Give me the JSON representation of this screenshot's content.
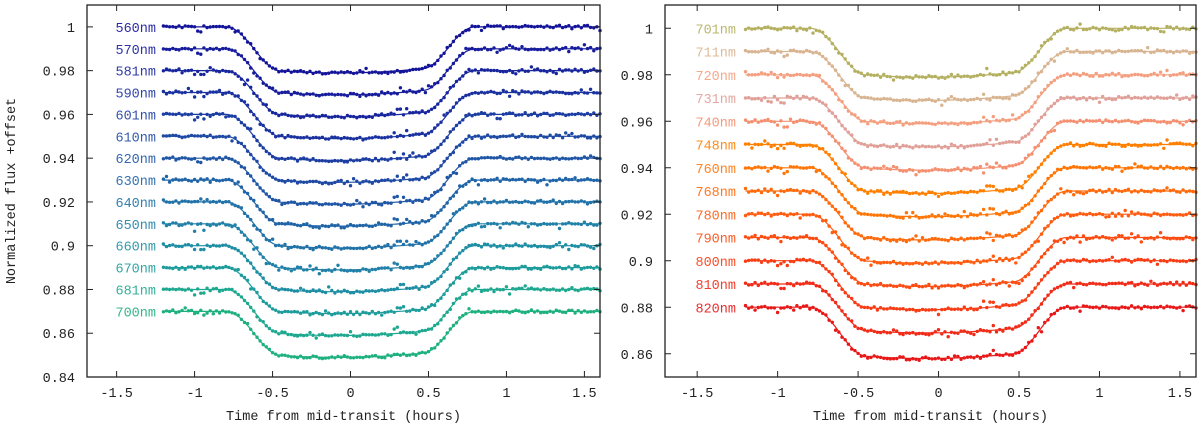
{
  "chart_data": [
    {
      "type": "scatter",
      "xlabel": "Time from mid-transit (hours)",
      "ylabel": "Normalized flux +offset",
      "xlim": [
        -1.69,
        1.6
      ],
      "ylim": [
        0.84,
        1.01
      ],
      "xticks": [
        -1.5,
        -1,
        -0.5,
        0,
        0.5,
        1,
        1.5
      ],
      "xtick_labels": [
        "-1.5",
        "-1",
        "-0.5",
        "0",
        "0.5",
        "1",
        "1.5"
      ],
      "yticks": [
        0.84,
        0.86,
        0.88,
        0.9,
        0.92,
        0.94,
        0.96,
        0.98,
        1
      ],
      "ytick_labels": [
        "0.84",
        "0.86",
        "0.88",
        "0.9",
        "0.92",
        "0.94",
        "0.96",
        "0.98",
        "1"
      ],
      "grid": false,
      "time_range": [
        -1.2,
        1.6
      ],
      "transit": {
        "ingress_start": -0.8,
        "ingress_end": -0.45,
        "egress_start": 0.47,
        "egress_end": 0.8
      },
      "series": [
        {
          "name": "560nm",
          "baseline": 1.0,
          "depth": 0.021,
          "color": "#14149a"
        },
        {
          "name": "570nm",
          "baseline": 0.99,
          "depth": 0.021,
          "color": "#161c9c"
        },
        {
          "name": "581nm",
          "baseline": 0.98,
          "depth": 0.021,
          "color": "#18269e"
        },
        {
          "name": "590nm",
          "baseline": 0.97,
          "depth": 0.021,
          "color": "#1a32a0"
        },
        {
          "name": "601nm",
          "baseline": 0.96,
          "depth": 0.021,
          "color": "#1c3ea2"
        },
        {
          "name": "610nm",
          "baseline": 0.95,
          "depth": 0.021,
          "color": "#1e4aa4"
        },
        {
          "name": "620nm",
          "baseline": 0.94,
          "depth": 0.021,
          "color": "#2056a6"
        },
        {
          "name": "630nm",
          "baseline": 0.93,
          "depth": 0.021,
          "color": "#2064a8"
        },
        {
          "name": "640nm",
          "baseline": 0.92,
          "depth": 0.021,
          "color": "#2072a8"
        },
        {
          "name": "650nm",
          "baseline": 0.91,
          "depth": 0.021,
          "color": "#2080a8"
        },
        {
          "name": "660nm",
          "baseline": 0.9,
          "depth": 0.021,
          "color": "#1e8ea4"
        },
        {
          "name": "670nm",
          "baseline": 0.89,
          "depth": 0.021,
          "color": "#1e9c9c"
        },
        {
          "name": "681nm",
          "baseline": 0.88,
          "depth": 0.021,
          "color": "#1ea890"
        },
        {
          "name": "700nm",
          "baseline": 0.87,
          "depth": 0.021,
          "color": "#1eb07e"
        }
      ]
    },
    {
      "type": "scatter",
      "xlabel": "Time from mid-transit (hours)",
      "ylabel": "",
      "xlim": [
        -1.7,
        1.6
      ],
      "ylim": [
        0.85,
        1.01
      ],
      "xticks": [
        -1.5,
        -1,
        -0.5,
        0,
        0.5,
        1,
        1.5
      ],
      "xtick_labels": [
        "-1.5",
        "-1",
        "-0.5",
        "0",
        "0.5",
        "1",
        "1.5"
      ],
      "yticks": [
        0.86,
        0.88,
        0.9,
        0.92,
        0.94,
        0.96,
        0.98,
        1
      ],
      "ytick_labels": [
        "0.86",
        "0.88",
        "0.9",
        "0.92",
        "0.94",
        "0.96",
        "0.98",
        "1"
      ],
      "grid": false,
      "time_range": [
        -1.2,
        1.6
      ],
      "transit": {
        "ingress_start": -0.8,
        "ingress_end": -0.45,
        "egress_start": 0.47,
        "egress_end": 0.8
      },
      "series": [
        {
          "name": "701nm",
          "baseline": 1.0,
          "depth": 0.021,
          "color": "#b4b060"
        },
        {
          "name": "711nm",
          "baseline": 0.99,
          "depth": 0.021,
          "color": "#d8b490"
        },
        {
          "name": "720nm",
          "baseline": 0.98,
          "depth": 0.021,
          "color": "#f4a080"
        },
        {
          "name": "731nm",
          "baseline": 0.97,
          "depth": 0.021,
          "color": "#e0a098"
        },
        {
          "name": "740nm",
          "baseline": 0.96,
          "depth": 0.021,
          "color": "#f49070"
        },
        {
          "name": "748nm",
          "baseline": 0.95,
          "depth": 0.021,
          "color": "#ff8000"
        },
        {
          "name": "760nm",
          "baseline": 0.94,
          "depth": 0.021,
          "color": "#ff7608"
        },
        {
          "name": "768nm",
          "baseline": 0.93,
          "depth": 0.021,
          "color": "#ff6a0c"
        },
        {
          "name": "780nm",
          "baseline": 0.92,
          "depth": 0.021,
          "color": "#ff5c10"
        },
        {
          "name": "790nm",
          "baseline": 0.91,
          "depth": 0.021,
          "color": "#fc4c12"
        },
        {
          "name": "800nm",
          "baseline": 0.9,
          "depth": 0.021,
          "color": "#f83c14"
        },
        {
          "name": "810nm",
          "baseline": 0.89,
          "depth": 0.021,
          "color": "#f02c18"
        },
        {
          "name": "820nm",
          "baseline": 0.88,
          "depth": 0.022,
          "color": "#e81818"
        }
      ]
    }
  ]
}
